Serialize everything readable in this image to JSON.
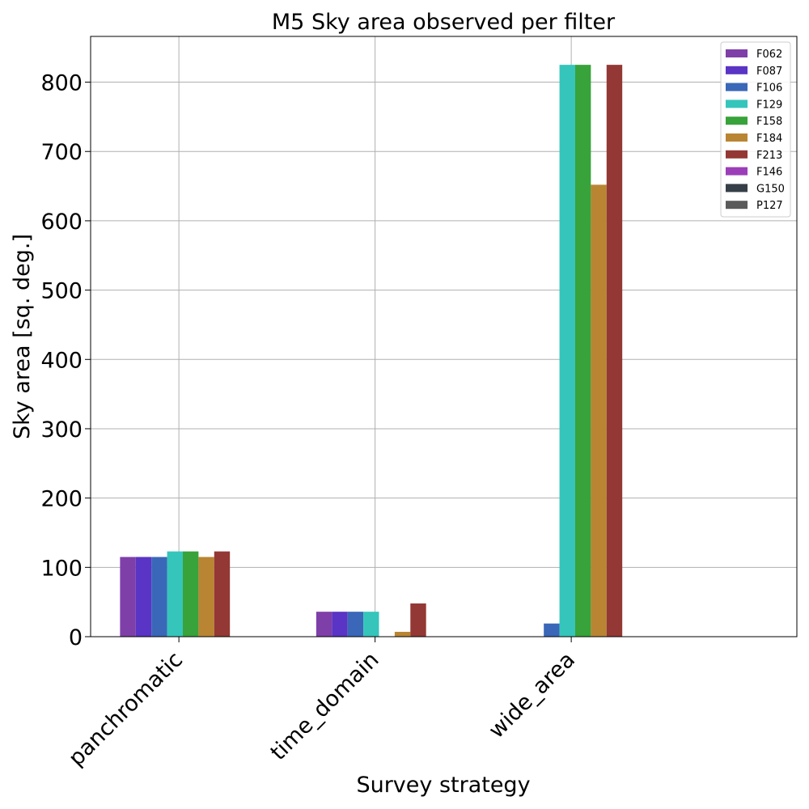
{
  "chart_data": {
    "type": "bar",
    "title": "M5 Sky area observed per filter",
    "xlabel": "Survey strategy",
    "ylabel": "Sky area [sq. deg.]",
    "categories": [
      "panchromatic",
      "time_domain",
      "wide_area"
    ],
    "ylim": [
      0,
      866
    ],
    "yticks": [
      "0",
      "100",
      "200",
      "300",
      "400",
      "500",
      "600",
      "700",
      "800"
    ],
    "grid": true,
    "legend_position": "top-right",
    "series": [
      {
        "name": "F062",
        "color": "#7f3fa8",
        "values": [
          115,
          36,
          0
        ]
      },
      {
        "name": "F087",
        "color": "#5a34c4",
        "values": [
          115,
          36,
          0
        ]
      },
      {
        "name": "F106",
        "color": "#3a67b8",
        "values": [
          115,
          36,
          19
        ]
      },
      {
        "name": "F129",
        "color": "#35c5bb",
        "values": [
          123,
          36,
          825
        ]
      },
      {
        "name": "F158",
        "color": "#37a33a",
        "values": [
          123,
          0,
          825
        ]
      },
      {
        "name": "F184",
        "color": "#b98533",
        "values": [
          115,
          7,
          652
        ]
      },
      {
        "name": "F213",
        "color": "#933834",
        "values": [
          123,
          48,
          825
        ]
      },
      {
        "name": "F146",
        "color": "#9b3eb8",
        "values": [
          0,
          0,
          0
        ]
      },
      {
        "name": "G150",
        "color": "#363f48",
        "values": [
          0,
          0,
          0
        ]
      },
      {
        "name": "P127",
        "color": "#5a5a5a",
        "values": [
          0,
          0,
          0
        ]
      }
    ]
  }
}
